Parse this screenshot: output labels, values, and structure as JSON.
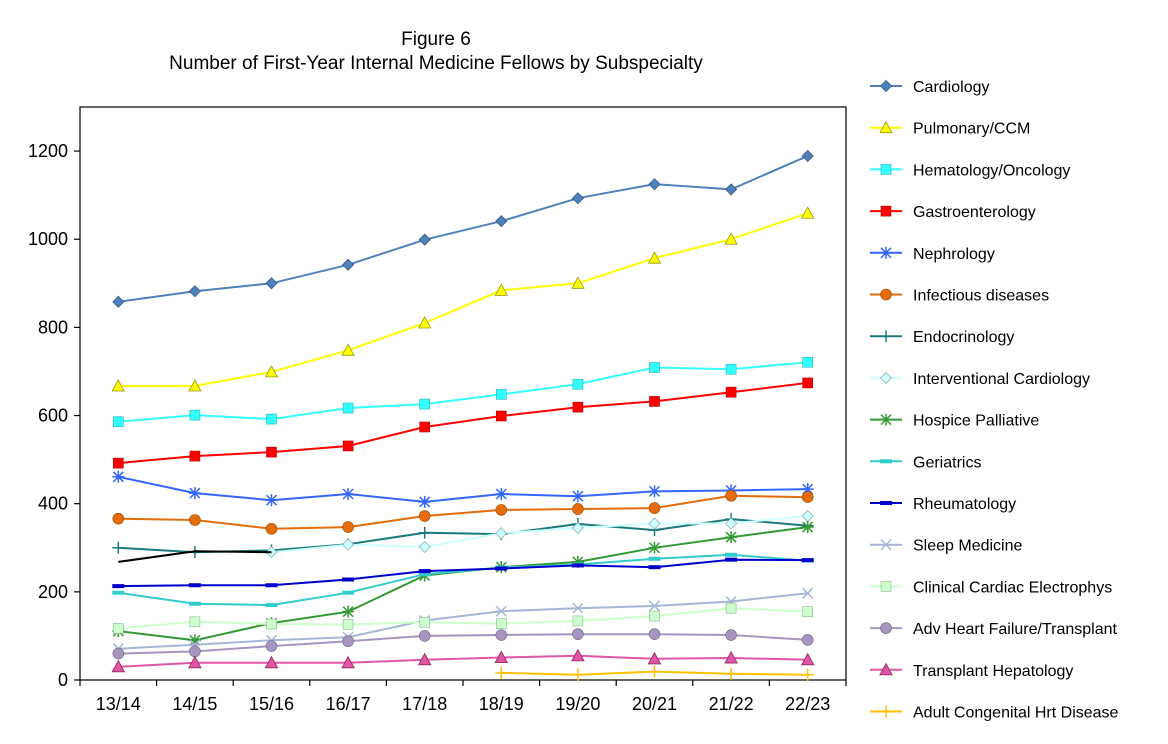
{
  "chart_data": {
    "type": "line",
    "title_line1": "Figure 6",
    "title_line2": "Number of First-Year Internal Medicine Fellows by Subspecialty",
    "categories": [
      "13/14",
      "14/15",
      "15/16",
      "16/17",
      "17/18",
      "18/19",
      "19/20",
      "20/21",
      "21/22",
      "22/23"
    ],
    "ylim": [
      0,
      1300
    ],
    "yticks": [
      0,
      200,
      400,
      600,
      800,
      1000,
      1200
    ],
    "grid": false,
    "legend_position": "right",
    "series": [
      {
        "name": "Cardiology",
        "color": "#4F81BD",
        "marker": "diamond",
        "values": [
          858,
          882,
          900,
          942,
          999,
          1041,
          1093,
          1125,
          1113,
          1189
        ]
      },
      {
        "name": "Pulmonary/CCM",
        "color": "#FFFF00",
        "marker": "triangle",
        "values": [
          667,
          667,
          699,
          748,
          810,
          884,
          900,
          957,
          1000,
          1059
        ]
      },
      {
        "name": "Hematology/Oncology",
        "color": "#33FFFF",
        "marker": "square",
        "values": [
          586,
          601,
          592,
          617,
          626,
          648,
          671,
          709,
          705,
          721
        ]
      },
      {
        "name": "Gastroenterology",
        "color": "#FF0000",
        "marker": "square",
        "values": [
          492,
          508,
          517,
          531,
          574,
          599,
          619,
          632,
          653,
          674
        ]
      },
      {
        "name": "Nephrology",
        "color": "#3366FF",
        "marker": "star",
        "values": [
          461,
          424,
          408,
          422,
          404,
          422,
          417,
          428,
          430,
          433
        ]
      },
      {
        "name": "Infectious diseases",
        "color": "#E46C0A",
        "marker": "circle",
        "values": [
          366,
          363,
          343,
          347,
          372,
          386,
          388,
          390,
          418,
          415
        ]
      },
      {
        "name": "Endocrinology",
        "color": "#1B7A7A",
        "marker": "plus",
        "values": [
          300,
          290,
          294,
          308,
          334,
          331,
          354,
          340,
          365,
          350
        ]
      },
      {
        "name": "Interventional Cardiology",
        "color": "#CCFFFF",
        "marker": "diamond",
        "values": [
          null,
          null,
          290,
          307,
          302,
          333,
          345,
          355,
          355,
          372
        ]
      },
      {
        "name": "Hospice Palliative",
        "color": "#339933",
        "marker": "star",
        "values": [
          111,
          90,
          129,
          155,
          237,
          256,
          268,
          300,
          324,
          347
        ]
      },
      {
        "name": "Geriatrics",
        "color": "#33CCCC",
        "marker": "dash",
        "values": [
          198,
          173,
          170,
          198,
          240,
          255,
          262,
          275,
          284,
          271
        ]
      },
      {
        "name": "Rheumatology",
        "color": "#0000CC",
        "marker": "dash",
        "values": [
          213,
          215,
          215,
          228,
          247,
          253,
          260,
          256,
          273,
          272
        ]
      },
      {
        "name": "Sleep Medicine",
        "color": "#A6B6D8",
        "marker": "x",
        "values": [
          71,
          80,
          90,
          97,
          135,
          156,
          163,
          168,
          178,
          197
        ]
      },
      {
        "name": "Clinical Cardiac Electrophys",
        "color": "#CCFFCC",
        "marker": "square",
        "values": [
          117,
          132,
          127,
          126,
          131,
          128,
          134,
          145,
          163,
          155
        ]
      },
      {
        "name": "Adv Heart Failure/Transplant",
        "color": "#A695C0",
        "marker": "circle",
        "values": [
          60,
          65,
          77,
          88,
          100,
          102,
          104,
          104,
          102,
          91
        ]
      },
      {
        "name": "Transplant Hepatology",
        "color": "#E055A6",
        "marker": "triangle-pink",
        "values": [
          30,
          39,
          39,
          39,
          46,
          51,
          55,
          48,
          50,
          46
        ]
      },
      {
        "name": "Adult Congenital Hrt Disease",
        "color": "#FFC000",
        "marker": "plus",
        "values": [
          null,
          null,
          null,
          null,
          null,
          16,
          12,
          19,
          14,
          12
        ]
      },
      {
        "name": "",
        "color": "#000000",
        "marker": "none",
        "values": [
          268,
          292,
          290,
          null,
          null,
          null,
          null,
          null,
          null,
          null
        ]
      }
    ]
  }
}
